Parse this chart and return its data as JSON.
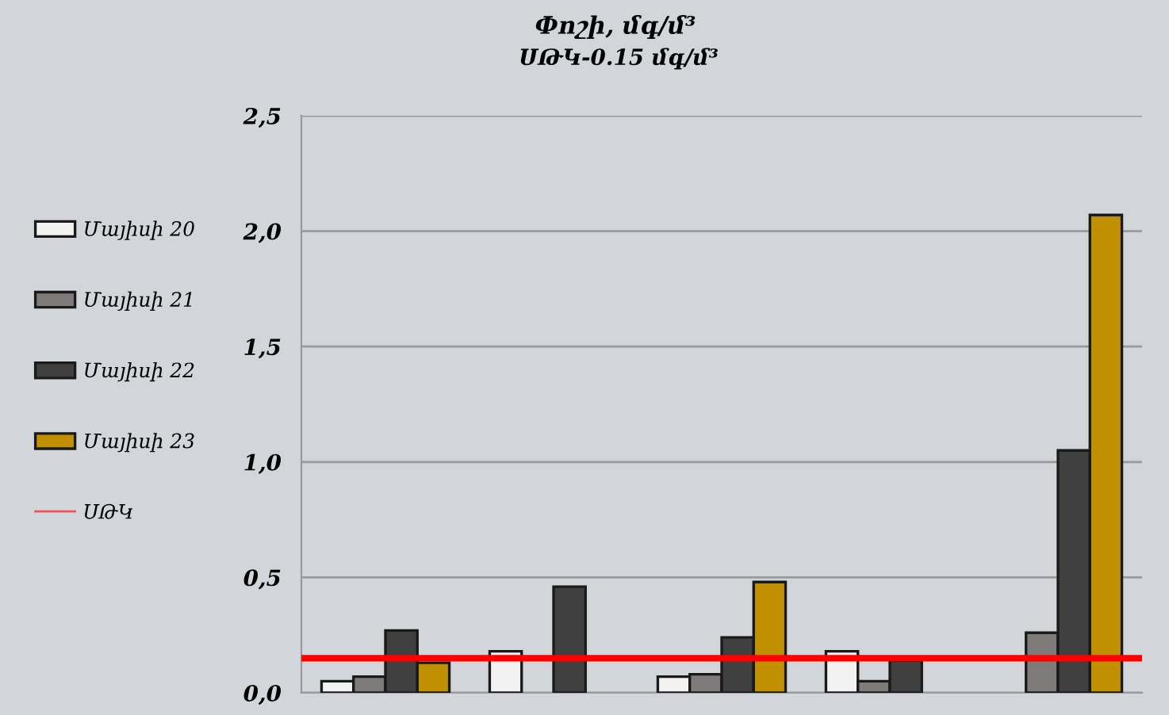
{
  "chart_data": {
    "type": "bar",
    "title": "Փոշի, մգ/մ³",
    "subtitle": "ՍԹԿ-0.15 մգ/մ³",
    "categories": [
      null,
      null,
      null,
      null,
      null
    ],
    "series": [
      {
        "name": "Մայիսի 20",
        "color": "#f2f2f2",
        "values": [
          0.05,
          0.18,
          0.07,
          0.18,
          null
        ]
      },
      {
        "name": "Մայիսի 21",
        "color": "#7f7b7b",
        "values": [
          0.07,
          null,
          0.08,
          0.05,
          0.26
        ]
      },
      {
        "name": "Մայիսի 22",
        "color": "#404040",
        "values": [
          0.27,
          0.46,
          0.24,
          0.14,
          1.05
        ]
      },
      {
        "name": "Մայիսի 23",
        "color": "#c09000",
        "values": [
          0.13,
          null,
          0.48,
          null,
          2.07
        ]
      }
    ],
    "ylim": [
      0,
      2.5
    ],
    "yticks": [
      {
        "value": 0,
        "label": "0,0"
      },
      {
        "value": 0.5,
        "label": "0,5"
      },
      {
        "value": 1.0,
        "label": "1,0"
      },
      {
        "value": 1.5,
        "label": "1,5"
      },
      {
        "value": 2.0,
        "label": "2,0"
      },
      {
        "value": 2.5,
        "label": "2,5"
      }
    ],
    "ref_lines": [
      {
        "axis": "y",
        "value": 0.15,
        "label": "ՍԹԿ",
        "color": "#ff0000"
      }
    ],
    "grid": "y",
    "legend": "left",
    "tick_labels": "y"
  }
}
